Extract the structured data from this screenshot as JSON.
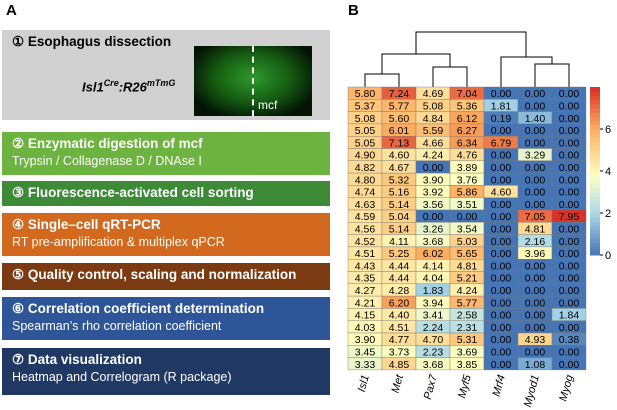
{
  "panel_a": {
    "label": "A",
    "steps": [
      {
        "title": "① Esophagus dissection"
      },
      {
        "title": "② Enzymatic digestion of mcf",
        "subtitle": "Trypsin / Collagenase D / DNAse I"
      },
      {
        "title": "③ Fluorescence-activated cell sorting"
      },
      {
        "title": "④ Single–cell qRT-PCR",
        "subtitle": "RT pre-amplification & multiplex qPCR"
      },
      {
        "title": "⑤ Quality control, scaling and normalization"
      },
      {
        "title": "⑥ Correlation coefficient determination",
        "subtitle": "Spearman’s rho correlation coefficient"
      },
      {
        "title": "⑦ Data visualization",
        "subtitle": "Heatmap and Correlogram (R package)"
      }
    ],
    "genotype": {
      "gene1": "Isl1",
      "sup1": "Cre",
      "gene2": ":R26",
      "sup2": "mTmG"
    },
    "image_label": "mcf"
  },
  "panel_b": {
    "label": "B",
    "columns": [
      "Isl1",
      "Met",
      "Pax7",
      "Myf5",
      "Mrf4",
      "Myod1",
      "Myog"
    ],
    "rows": [
      [
        "5.80",
        "7.24",
        "4.69",
        "7.04",
        "0.00",
        "0.00",
        "0.00"
      ],
      [
        "5.37",
        "5.77",
        "5.08",
        "5.36",
        "1.81",
        "0.00",
        "0.00"
      ],
      [
        "5.08",
        "5.60",
        "4.84",
        "6.12",
        "0.19",
        "1.40",
        "0.00"
      ],
      [
        "5.05",
        "6.01",
        "5.59",
        "6.27",
        "0.00",
        "0.00",
        "0.00"
      ],
      [
        "5.05",
        "7.13",
        "4.66",
        "6.34",
        "6.79",
        "0.00",
        "0.00"
      ],
      [
        "4.90",
        "4.60",
        "4.24",
        "4.76",
        "0.00",
        "3.29",
        "0.00"
      ],
      [
        "4.82",
        "4.67",
        "0.00",
        "3.89",
        "0.00",
        "0.00",
        "0.00"
      ],
      [
        "4.80",
        "5.32",
        "3.90",
        "3.76",
        "0.00",
        "0.00",
        "0.00"
      ],
      [
        "4.74",
        "5.16",
        "3.92",
        "5.86",
        "4.60",
        "0.00",
        "0.00"
      ],
      [
        "4.63",
        "5.14",
        "3.56",
        "3.51",
        "0.00",
        "0.00",
        "0.00"
      ],
      [
        "4.59",
        "5.04",
        "0.00",
        "0.00",
        "0.00",
        "7.05",
        "7.95"
      ],
      [
        "4.56",
        "5.14",
        "3.26",
        "3.54",
        "0.00",
        "4.81",
        "0.00"
      ],
      [
        "4.52",
        "4.11",
        "3.68",
        "5.03",
        "0.00",
        "2.16",
        "0.00"
      ],
      [
        "4.51",
        "5.25",
        "6.02",
        "5.65",
        "0.00",
        "3.96",
        "0.00"
      ],
      [
        "4.43",
        "4.44",
        "4.14",
        "4.81",
        "0.00",
        "0.00",
        "0.00"
      ],
      [
        "4.35",
        "4.44",
        "4.04",
        "5.21",
        "0.00",
        "0.00",
        "0.00"
      ],
      [
        "4.27",
        "4.28",
        "1.83",
        "4.24",
        "0.00",
        "0.00",
        "0.00"
      ],
      [
        "4.21",
        "6.20",
        "3.94",
        "5.77",
        "0.00",
        "0.00",
        "0.00"
      ],
      [
        "4.15",
        "4.40",
        "3.41",
        "2.58",
        "0.00",
        "0.00",
        "1.84"
      ],
      [
        "4.03",
        "4.51",
        "2.24",
        "2.31",
        "0.00",
        "0.00",
        "0.00"
      ],
      [
        "3.90",
        "4.77",
        "4.70",
        "5.31",
        "0.00",
        "4.93",
        "0.38"
      ],
      [
        "3.45",
        "3.73",
        "2.23",
        "3.69",
        "0.00",
        "0.00",
        "0.00"
      ],
      [
        "3.33",
        "4.85",
        "3.68",
        "3.85",
        "0.00",
        "1.08",
        "0.00"
      ]
    ],
    "colorbar_ticks": [
      0,
      2,
      4,
      6
    ]
  }
}
